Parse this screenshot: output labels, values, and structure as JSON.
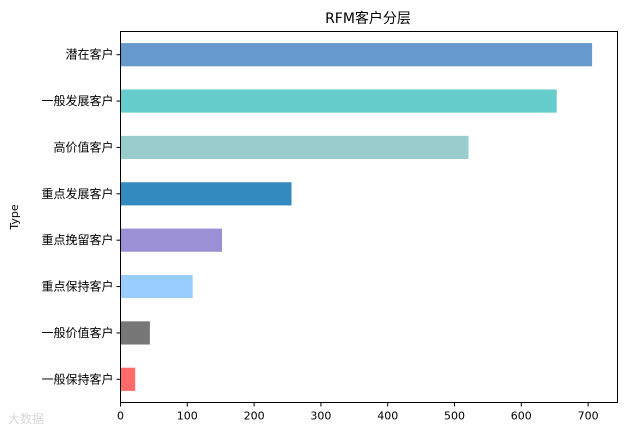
{
  "chart_data": {
    "type": "bar",
    "orientation": "horizontal",
    "title": "RFM客户分层",
    "ylabel": "Type",
    "xlabel": "",
    "categories": [
      "一般保持客户",
      "一般价值客户",
      "重点保持客户",
      "重点挽留客户",
      "重点发展客户",
      "高价值客户",
      "一般发展客户",
      "潜在客户"
    ],
    "values": [
      22,
      44,
      108,
      152,
      256,
      521,
      653,
      706
    ],
    "colors": [
      "#FF6B6B",
      "#777777",
      "#99CCFF",
      "#9B8FD6",
      "#338ABE",
      "#99CCCC",
      "#66CCCC",
      "#6699CC"
    ],
    "xlim": [
      0,
      744
    ],
    "xticks": [
      0,
      100,
      200,
      300,
      400,
      500,
      600,
      700
    ],
    "grid": false,
    "legend": "none"
  },
  "watermark": "大数据"
}
